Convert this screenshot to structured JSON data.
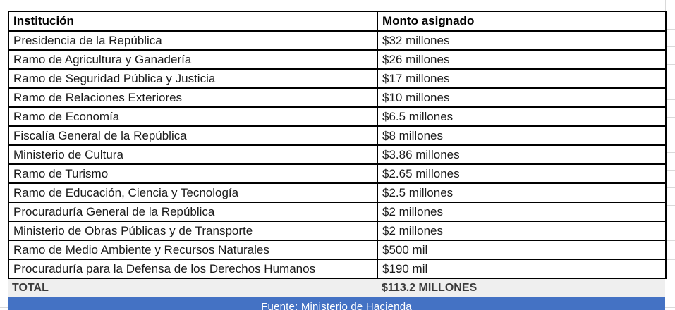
{
  "table": {
    "headers": {
      "institution": "Institución",
      "amount": "Monto asignado"
    },
    "rows": [
      {
        "institution": "Presidencia de la República",
        "amount": "$32 millones"
      },
      {
        "institution": "Ramo de Agricultura y Ganadería",
        "amount": "$26 millones"
      },
      {
        "institution": "Ramo de Seguridad Pública y Justicia",
        "amount": "$17 millones"
      },
      {
        "institution": "Ramo de Relaciones Exteriores",
        "amount": "$10 millones"
      },
      {
        "institution": "Ramo de Economía",
        "amount": "$6.5 millones"
      },
      {
        "institution": "Fiscalía General de la República",
        "amount": "$8 millones"
      },
      {
        "institution": "Ministerio de Cultura",
        "amount": "$3.86 millones"
      },
      {
        "institution": "Ramo de Turismo",
        "amount": "$2.65 millones"
      },
      {
        "institution": "Ramo de Educación, Ciencia y Tecnología",
        "amount": "$2.5 millones"
      },
      {
        "institution": "Procuraduría General de la República",
        "amount": "$2 millones"
      },
      {
        "institution": "Ministerio de Obras Públicas y de Transporte",
        "amount": "$2 millones"
      },
      {
        "institution": "Ramo de Medio Ambiente y Recursos Naturales",
        "amount": "$500 mil"
      },
      {
        "institution": "Procuraduría para la Defensa de los Derechos Humanos",
        "amount": "$190 mil"
      }
    ],
    "total": {
      "label": "TOTAL",
      "amount": "$113.2 MILLONES"
    }
  },
  "footer": {
    "source": "Fuente: Ministerio de Hacienda"
  },
  "colors": {
    "footer_bg": "#4472C4",
    "footer_text": "#FFFFFF",
    "total_bg": "#EFEFEF",
    "total_text": "#3B3B3B",
    "table_border": "#000000",
    "gridline": "#D9D9D9"
  },
  "chart_data": {
    "type": "table",
    "title": "",
    "columns": [
      "Institución",
      "Monto asignado"
    ],
    "rows": [
      [
        "Presidencia de la República",
        "$32 millones"
      ],
      [
        "Ramo de Agricultura y Ganadería",
        "$26 millones"
      ],
      [
        "Ramo de Seguridad Pública y Justicia",
        "$17 millones"
      ],
      [
        "Ramo de Relaciones Exteriores",
        "$10 millones"
      ],
      [
        "Ramo de Economía",
        "$6.5 millones"
      ],
      [
        "Fiscalía General de la República",
        "$8 millones"
      ],
      [
        "Ministerio de Cultura",
        "$3.86 millones"
      ],
      [
        "Ramo de Turismo",
        "$2.65 millones"
      ],
      [
        "Ramo de Educación, Ciencia y Tecnología",
        "$2.5 millones"
      ],
      [
        "Procuraduría General de la República",
        "$2 millones"
      ],
      [
        "Ministerio de Obras Públicas y de Transporte",
        "$2 millones"
      ],
      [
        "Ramo de Medio Ambiente y Recursos Naturales",
        "$500 mil"
      ],
      [
        "Procuraduría para la Defensa de los Derechos Humanos",
        "$190 mil"
      ]
    ],
    "values_millions_usd": [
      32,
      26,
      17,
      10,
      6.5,
      8,
      3.86,
      2.65,
      2.5,
      2,
      2,
      0.5,
      0.19
    ],
    "total_row": [
      "TOTAL",
      "$113.2 MILLONES"
    ],
    "total_value_millions_usd": 113.2,
    "source_note": "Fuente: Ministerio de Hacienda"
  }
}
